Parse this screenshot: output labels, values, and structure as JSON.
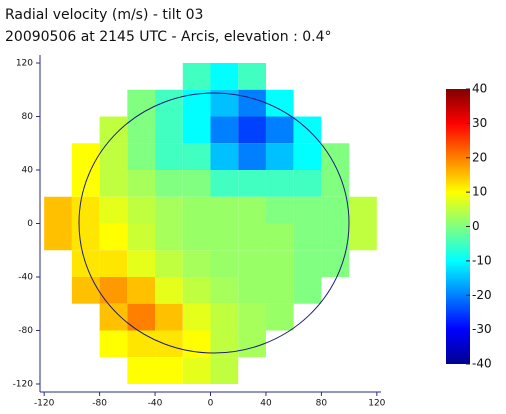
{
  "chart_data": {
    "type": "heatmap",
    "title": "Radial velocity (m/s) - tilt 03",
    "subtitle": "20090506 at 2145 UTC - Arcis, elevation : 0.4°",
    "x": [
      -110,
      -90,
      -70,
      -50,
      -30,
      -10,
      10,
      30,
      50,
      70,
      90,
      110
    ],
    "y": [
      110,
      90,
      70,
      50,
      30,
      10,
      -10,
      -30,
      -50,
      -70,
      -90,
      -110
    ],
    "values": [
      [
        null,
        null,
        null,
        null,
        null,
        -5,
        -10,
        -5,
        null,
        null,
        null,
        null
      ],
      [
        null,
        null,
        null,
        0,
        -5,
        -10,
        -15,
        -20,
        -10,
        null,
        null,
        null
      ],
      [
        null,
        null,
        5,
        0,
        -5,
        -10,
        -20,
        -25,
        -20,
        -10,
        null,
        null
      ],
      [
        null,
        10,
        5,
        0,
        -5,
        -5,
        -15,
        -20,
        -15,
        -10,
        0,
        null
      ],
      [
        null,
        10,
        5,
        3,
        0,
        0,
        -5,
        -5,
        -5,
        -5,
        0,
        null
      ],
      [
        15,
        12,
        8,
        5,
        3,
        2,
        2,
        2,
        0,
        0,
        0,
        5
      ],
      [
        15,
        12,
        10,
        6,
        3,
        2,
        2,
        2,
        2,
        0,
        0,
        5
      ],
      [
        null,
        12,
        12,
        8,
        5,
        3,
        2,
        2,
        2,
        0,
        0,
        null
      ],
      [
        null,
        15,
        18,
        15,
        8,
        5,
        3,
        2,
        2,
        0,
        null,
        null
      ],
      [
        null,
        null,
        15,
        20,
        15,
        8,
        5,
        3,
        2,
        null,
        null,
        null
      ],
      [
        null,
        null,
        10,
        12,
        12,
        10,
        5,
        3,
        null,
        null,
        null,
        null
      ],
      [
        null,
        null,
        null,
        10,
        10,
        8,
        5,
        null,
        null,
        null,
        null,
        null
      ]
    ],
    "cell_size": 20,
    "xlim": [
      -123,
      123
    ],
    "ylim": [
      -126,
      126
    ],
    "xticks": [
      -120,
      -80,
      -40,
      0,
      40,
      80,
      120
    ],
    "yticks": [
      -120,
      -80,
      -40,
      0,
      40,
      80,
      120
    ],
    "clim": [
      -40,
      40
    ],
    "cticks": [
      40,
      30,
      20,
      10,
      0,
      -10,
      -20,
      -30,
      -40
    ],
    "colormap": [
      "#00008f",
      "#0000ff",
      "#0080ff",
      "#00ffff",
      "#80ff80",
      "#ffff00",
      "#ff8000",
      "#ff0000",
      "#800000"
    ],
    "axis_color": "#2a2a8a"
  }
}
